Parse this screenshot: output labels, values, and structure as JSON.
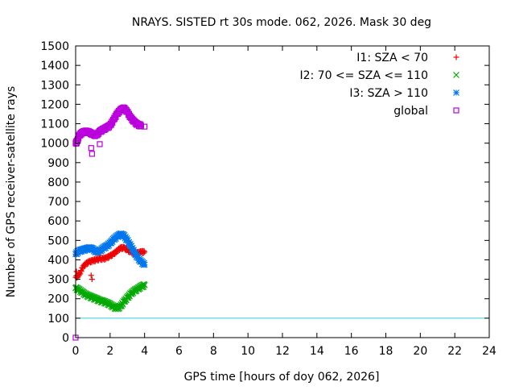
{
  "chart_data": {
    "type": "scatter",
    "title": "NRAYS. SISTED rt 30s mode. 062, 2026. Mask 30 deg",
    "xlabel": "GPS time [hours of doy 062, 2026]",
    "ylabel": "Number of GPS receiver-satellite rays",
    "xlim": [
      0,
      24
    ],
    "ylim": [
      0,
      1500
    ],
    "x_ticks": [
      0,
      2,
      4,
      6,
      8,
      10,
      12,
      14,
      16,
      18,
      20,
      22,
      24
    ],
    "y_ticks": [
      0,
      100,
      200,
      300,
      400,
      500,
      600,
      700,
      800,
      900,
      1000,
      1100,
      1200,
      1300,
      1400,
      1500
    ],
    "legend_position": "top-right",
    "reference_line": {
      "y": 100,
      "color": "#33ccdd"
    },
    "series": [
      {
        "name": "I1: SZA < 70",
        "color": "#ee0000",
        "marker": "plus",
        "points": [
          [
            0.0,
            310
          ],
          [
            0.2,
            320
          ],
          [
            0.4,
            360
          ],
          [
            0.6,
            380
          ],
          [
            0.8,
            390
          ],
          [
            1.0,
            395
          ],
          [
            1.2,
            400
          ],
          [
            1.4,
            405
          ],
          [
            1.6,
            405
          ],
          [
            1.8,
            410
          ],
          [
            2.0,
            420
          ],
          [
            2.2,
            430
          ],
          [
            2.4,
            445
          ],
          [
            2.6,
            460
          ],
          [
            2.8,
            462
          ],
          [
            3.0,
            450
          ],
          [
            3.2,
            440
          ],
          [
            3.4,
            430
          ],
          [
            3.6,
            435
          ],
          [
            3.8,
            440
          ],
          [
            4.0,
            440
          ],
          [
            0.05,
            340
          ],
          [
            0.9,
            320
          ],
          [
            0.95,
            300
          ]
        ]
      },
      {
        "name": "I2: 70 <= SZA <= 110",
        "color": "#00aa00",
        "marker": "cross",
        "points": [
          [
            0.0,
            255
          ],
          [
            0.2,
            245
          ],
          [
            0.4,
            232
          ],
          [
            0.6,
            220
          ],
          [
            0.8,
            212
          ],
          [
            1.0,
            205
          ],
          [
            1.2,
            198
          ],
          [
            1.4,
            190
          ],
          [
            1.6,
            185
          ],
          [
            1.8,
            178
          ],
          [
            2.0,
            170
          ],
          [
            2.2,
            158
          ],
          [
            2.4,
            150
          ],
          [
            2.6,
            160
          ],
          [
            2.8,
            185
          ],
          [
            3.0,
            205
          ],
          [
            3.2,
            225
          ],
          [
            3.4,
            240
          ],
          [
            3.6,
            250
          ],
          [
            3.8,
            262
          ],
          [
            4.0,
            270
          ]
        ]
      },
      {
        "name": "I3: SZA > 110",
        "color": "#0077ee",
        "marker": "star",
        "points": [
          [
            0.0,
            430
          ],
          [
            0.2,
            445
          ],
          [
            0.4,
            450
          ],
          [
            0.6,
            455
          ],
          [
            0.8,
            460
          ],
          [
            1.0,
            455
          ],
          [
            1.2,
            440
          ],
          [
            1.4,
            445
          ],
          [
            1.6,
            460
          ],
          [
            1.8,
            470
          ],
          [
            2.0,
            485
          ],
          [
            2.2,
            505
          ],
          [
            2.4,
            520
          ],
          [
            2.6,
            530
          ],
          [
            2.8,
            525
          ],
          [
            3.0,
            500
          ],
          [
            3.2,
            470
          ],
          [
            3.4,
            440
          ],
          [
            3.6,
            410
          ],
          [
            3.8,
            390
          ],
          [
            4.0,
            375
          ]
        ]
      },
      {
        "name": "global",
        "color": "#bb00dd",
        "marker": "square",
        "points": [
          [
            0.0,
            1000
          ],
          [
            0.1,
            1010
          ],
          [
            0.2,
            1040
          ],
          [
            0.4,
            1055
          ],
          [
            0.6,
            1060
          ],
          [
            0.8,
            1055
          ],
          [
            1.0,
            1045
          ],
          [
            1.2,
            1040
          ],
          [
            1.4,
            1060
          ],
          [
            1.6,
            1070
          ],
          [
            1.8,
            1080
          ],
          [
            2.0,
            1090
          ],
          [
            2.2,
            1120
          ],
          [
            2.4,
            1150
          ],
          [
            2.6,
            1170
          ],
          [
            2.8,
            1180
          ],
          [
            3.0,
            1160
          ],
          [
            3.2,
            1130
          ],
          [
            3.4,
            1110
          ],
          [
            3.6,
            1095
          ],
          [
            3.8,
            1090
          ],
          [
            4.0,
            1085
          ],
          [
            0.9,
            975
          ],
          [
            0.95,
            945
          ],
          [
            1.4,
            995
          ],
          [
            0.0,
            0
          ]
        ]
      }
    ]
  }
}
